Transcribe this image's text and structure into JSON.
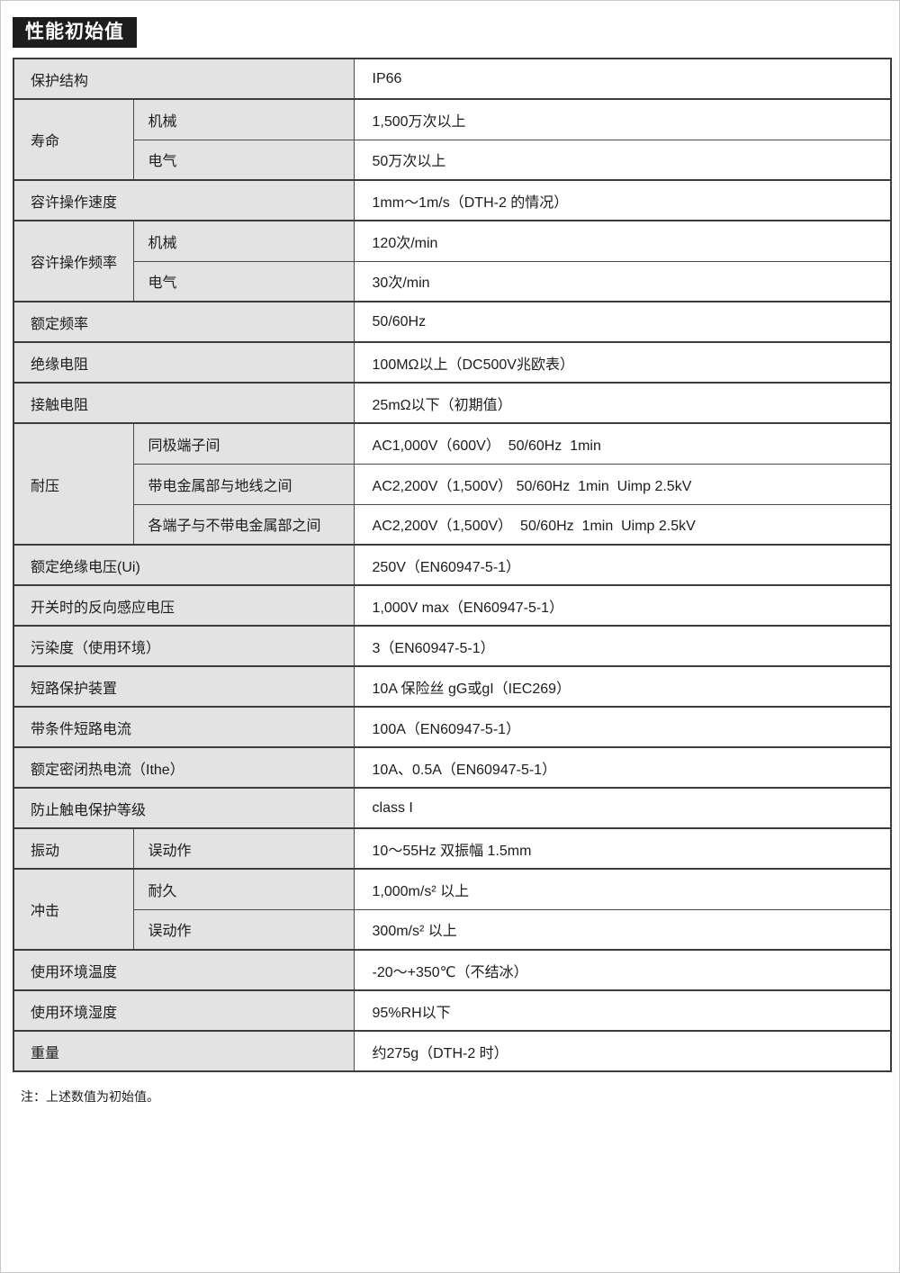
{
  "page": {
    "title": "性能初始值",
    "note": "注：上述数值为初始值。"
  },
  "colors": {
    "title_bg": "#1d1d1d",
    "title_text": "#ffffff",
    "label_cell_bg": "#e3e3e3",
    "border": "#3c3c3c"
  },
  "table": {
    "rows": [
      {
        "label": "保护结构",
        "value": "IP66"
      },
      {
        "group": "寿命",
        "sub": [
          {
            "label": "机械",
            "value": "1,500万次以上"
          },
          {
            "label": "电气",
            "value": "50万次以上"
          }
        ]
      },
      {
        "label": "容许操作速度",
        "value": "1mm～1m/s（DTH-2 的情况）"
      },
      {
        "group": "容许操作频率",
        "sub": [
          {
            "label": "机械",
            "value": "120次/min"
          },
          {
            "label": "电气",
            "value": "30次/min"
          }
        ]
      },
      {
        "label": "额定频率",
        "value": "50/60Hz"
      },
      {
        "label": "绝缘电阻",
        "value": "100MΩ以上（DC500V兆欧表）"
      },
      {
        "label": "接触电阻",
        "value": "25mΩ以下（初期值）"
      },
      {
        "group": "耐压",
        "sub": [
          {
            "label": "同极端子间",
            "value": "AC1,000V（600V）  50/60Hz  1min"
          },
          {
            "label": "带电金属部与地线之间",
            "value": "AC2,200V（1,500V） 50/60Hz  1min  Uimp 2.5kV"
          },
          {
            "label": "各端子与不带电金属部之间",
            "value": "AC2,200V（1,500V）  50/60Hz  1min  Uimp 2.5kV"
          }
        ]
      },
      {
        "label": "额定绝缘电压(Ui)",
        "value": "250V（EN60947-5-1）"
      },
      {
        "label": "开关时的反向感应电压",
        "value": "1,000V max（EN60947-5-1）"
      },
      {
        "label": "污染度（使用环境）",
        "value": "3（EN60947-5-1）"
      },
      {
        "label": "短路保护装置",
        "value": "10A 保险丝 gG或gI（IEC269）"
      },
      {
        "label": "带条件短路电流",
        "value": "100A（EN60947-5-1）"
      },
      {
        "label": "额定密闭热电流（Ithe）",
        "value": "10A、0.5A（EN60947-5-1）"
      },
      {
        "label": "防止触电保护等级",
        "value": "class I"
      },
      {
        "group": "振动",
        "sub": [
          {
            "label": "误动作",
            "value": "10～55Hz 双振幅 1.5mm"
          }
        ]
      },
      {
        "group": "冲击",
        "sub": [
          {
            "label": "耐久",
            "value": "1,000m/s² 以上"
          },
          {
            "label": "误动作",
            "value": "300m/s² 以上"
          }
        ]
      },
      {
        "label": "使用环境温度",
        "value": "-20～+350℃（不结冰）"
      },
      {
        "label": "使用环境湿度",
        "value": "95%RH以下"
      },
      {
        "label": "重量",
        "value": "约275g（DTH-2 时）"
      }
    ]
  }
}
